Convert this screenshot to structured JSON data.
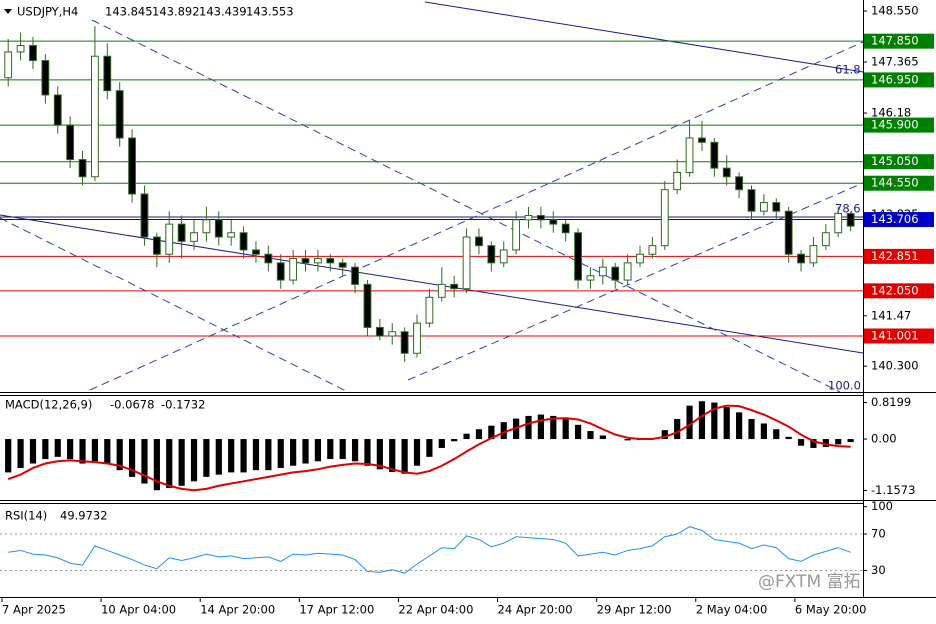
{
  "chart_data": [
    {
      "type": "candlestick",
      "symbol": "USDJPY,H4",
      "xlim": [
        0,
        69.5
      ],
      "xticks": [
        {
          "value": 0,
          "label": "7 Apr 2025"
        },
        {
          "value": 8,
          "label": "10 Apr 04:00"
        },
        {
          "value": 16,
          "label": "14 Apr 20:00"
        },
        {
          "value": 24,
          "label": "17 Apr 12:00"
        },
        {
          "value": 32,
          "label": "22 Apr 04:00"
        },
        {
          "value": 40,
          "label": "24 Apr 20:00"
        },
        {
          "value": 48,
          "label": "29 Apr 12:00"
        },
        {
          "value": 56,
          "label": "2 May 04:00"
        },
        {
          "value": 64,
          "label": "6 May 20:00"
        }
      ],
      "ylim": [
        139.7,
        148.76
      ],
      "yticks": [
        {
          "value": 148.55,
          "label": "148.550"
        },
        147.365,
        146.18,
        143.825,
        141.47,
        {
          "value": 140.3,
          "label": "140.300"
        }
      ],
      "up_color": "#ffffff",
      "down_color": "#000000",
      "outline_color": "#2f6b1f",
      "levels": [
        {
          "value": 147.85,
          "label": "147.850",
          "color": "#008000"
        },
        {
          "value": 146.95,
          "label": "146.950",
          "color": "#008000"
        },
        {
          "value": 145.9,
          "label": "145.900",
          "color": "#008000"
        },
        {
          "value": 145.05,
          "label": "145.050",
          "color": "#008000"
        },
        {
          "value": 144.55,
          "label": "144.550",
          "color": "#008000"
        },
        {
          "value": 143.706,
          "label": "143.706",
          "color": "#0000c8"
        },
        {
          "value": 142.851,
          "label": "142.851",
          "color": "#e00000"
        },
        {
          "value": 142.05,
          "label": "142.050",
          "color": "#e00000"
        },
        {
          "value": 141.001,
          "label": "141.001",
          "color": "#e00000"
        }
      ],
      "annotations": [
        "61.8",
        "78.6",
        "100.0"
      ],
      "candles": [
        [
          147.0,
          147.9,
          146.8,
          147.6
        ],
        [
          147.6,
          148.05,
          147.4,
          147.75
        ],
        [
          147.75,
          147.95,
          147.2,
          147.4
        ],
        [
          147.4,
          147.55,
          146.4,
          146.6
        ],
        [
          146.6,
          146.8,
          145.7,
          145.9
        ],
        [
          145.9,
          146.1,
          144.9,
          145.1
        ],
        [
          145.1,
          145.3,
          144.5,
          144.7
        ],
        [
          144.7,
          148.2,
          144.6,
          147.5
        ],
        [
          147.5,
          147.8,
          146.5,
          146.7
        ],
        [
          146.7,
          146.9,
          145.4,
          145.6
        ],
        [
          145.6,
          145.8,
          144.1,
          144.3
        ],
        [
          144.3,
          144.5,
          143.1,
          143.3
        ],
        [
          143.3,
          143.4,
          142.6,
          142.9
        ],
        [
          142.9,
          143.9,
          142.7,
          143.6
        ],
        [
          143.6,
          143.8,
          142.8,
          143.2
        ],
        [
          143.2,
          143.7,
          143.0,
          143.4
        ],
        [
          143.4,
          144.0,
          143.2,
          143.7
        ],
        [
          143.7,
          143.9,
          143.1,
          143.3
        ],
        [
          143.3,
          143.7,
          143.1,
          143.4
        ],
        [
          143.4,
          143.55,
          142.8,
          143.0
        ],
        [
          143.0,
          143.2,
          142.7,
          142.9
        ],
        [
          142.9,
          143.1,
          142.5,
          142.7
        ],
        [
          142.7,
          142.9,
          142.1,
          142.3
        ],
        [
          142.3,
          143.0,
          142.2,
          142.8
        ],
        [
          142.8,
          143.0,
          142.5,
          142.7
        ],
        [
          142.7,
          143.0,
          142.5,
          142.8
        ],
        [
          142.8,
          142.9,
          142.5,
          142.7
        ],
        [
          142.7,
          142.8,
          142.4,
          142.6
        ],
        [
          142.6,
          142.7,
          142.0,
          142.2
        ],
        [
          142.2,
          142.3,
          141.0,
          141.2
        ],
        [
          141.2,
          141.4,
          140.9,
          141.0
        ],
        [
          141.0,
          141.3,
          140.8,
          141.1
        ],
        [
          141.1,
          141.2,
          140.4,
          140.6
        ],
        [
          140.6,
          141.5,
          140.5,
          141.3
        ],
        [
          141.3,
          142.1,
          141.2,
          141.9
        ],
        [
          141.9,
          142.6,
          141.8,
          142.2
        ],
        [
          142.2,
          142.4,
          141.9,
          142.1
        ],
        [
          142.1,
          143.5,
          142.0,
          143.3
        ],
        [
          143.3,
          143.5,
          142.9,
          143.1
        ],
        [
          143.1,
          143.2,
          142.5,
          142.7
        ],
        [
          142.7,
          143.2,
          142.6,
          143.0
        ],
        [
          143.0,
          143.9,
          142.9,
          143.7
        ],
        [
          143.7,
          144.0,
          143.5,
          143.8
        ],
        [
          143.8,
          144.0,
          143.5,
          143.7
        ],
        [
          143.7,
          143.9,
          143.4,
          143.6
        ],
        [
          143.6,
          143.7,
          143.2,
          143.4
        ],
        [
          143.4,
          143.5,
          142.1,
          142.3
        ],
        [
          142.3,
          142.6,
          142.1,
          142.4
        ],
        [
          142.4,
          142.8,
          142.2,
          142.6
        ],
        [
          142.6,
          142.7,
          142.1,
          142.3
        ],
        [
          142.3,
          142.9,
          142.2,
          142.7
        ],
        [
          142.7,
          143.1,
          142.6,
          142.9
        ],
        [
          142.9,
          143.3,
          142.8,
          143.1
        ],
        [
          143.1,
          144.6,
          143.0,
          144.4
        ],
        [
          144.4,
          145.1,
          144.3,
          144.8
        ],
        [
          144.8,
          146.0,
          144.7,
          145.6
        ],
        [
          145.6,
          146.0,
          145.3,
          145.5
        ],
        [
          145.5,
          145.6,
          144.7,
          144.9
        ],
        [
          144.9,
          145.2,
          144.5,
          144.7
        ],
        [
          144.7,
          144.8,
          144.2,
          144.4
        ],
        [
          144.4,
          144.5,
          143.7,
          143.9
        ],
        [
          143.9,
          144.3,
          143.8,
          144.1
        ],
        [
          144.1,
          144.2,
          143.7,
          143.9
        ],
        [
          143.9,
          144.0,
          142.7,
          142.9
        ],
        [
          142.9,
          143.0,
          142.5,
          142.7
        ],
        [
          142.7,
          143.3,
          142.6,
          143.1
        ],
        [
          143.1,
          143.6,
          143.0,
          143.4
        ],
        [
          143.4,
          144.0,
          143.3,
          143.85
        ],
        [
          143.845,
          143.892,
          143.439,
          143.553
        ]
      ]
    },
    {
      "type": "macd",
      "title": "MACD(12,26,9)",
      "ylim": [
        -1.37,
        0.99
      ],
      "yticks": [
        0.8199,
        {
          "value": 0,
          "label": "0.00"
        },
        -1.1573
      ],
      "histogram_color": "#000000",
      "signal_color": "#e00000",
      "histogram": [
        -0.75,
        -0.65,
        -0.55,
        -0.45,
        -0.4,
        -0.45,
        -0.55,
        -0.5,
        -0.55,
        -0.7,
        -0.85,
        -1.0,
        -1.15,
        -1.1,
        -1.05,
        -0.95,
        -0.85,
        -0.8,
        -0.75,
        -0.75,
        -0.7,
        -0.7,
        -0.65,
        -0.6,
        -0.55,
        -0.5,
        -0.45,
        -0.45,
        -0.5,
        -0.6,
        -0.68,
        -0.74,
        -0.78,
        -0.6,
        -0.4,
        -0.2,
        -0.05,
        0.12,
        0.22,
        0.3,
        0.38,
        0.46,
        0.52,
        0.55,
        0.52,
        0.45,
        0.32,
        0.18,
        0.08,
        0.0,
        -0.03,
        -0.02,
        0.02,
        0.2,
        0.45,
        0.75,
        0.85,
        0.82,
        0.72,
        0.6,
        0.45,
        0.35,
        0.22,
        0.05,
        -0.15,
        -0.2,
        -0.18,
        -0.12,
        -0.0678
      ],
      "signal": [
        -0.9,
        -0.8,
        -0.65,
        -0.55,
        -0.5,
        -0.48,
        -0.5,
        -0.52,
        -0.55,
        -0.6,
        -0.7,
        -0.82,
        -0.95,
        -1.05,
        -1.12,
        -1.15,
        -1.12,
        -1.05,
        -1.0,
        -0.95,
        -0.9,
        -0.85,
        -0.8,
        -0.75,
        -0.72,
        -0.68,
        -0.62,
        -0.58,
        -0.55,
        -0.56,
        -0.6,
        -0.68,
        -0.75,
        -0.78,
        -0.72,
        -0.6,
        -0.45,
        -0.28,
        -0.12,
        0.02,
        0.15,
        0.25,
        0.35,
        0.42,
        0.46,
        0.47,
        0.44,
        0.35,
        0.22,
        0.1,
        0.03,
        0.0,
        0.0,
        0.05,
        0.15,
        0.32,
        0.52,
        0.68,
        0.75,
        0.74,
        0.65,
        0.55,
        0.42,
        0.28,
        0.1,
        -0.05,
        -0.12,
        -0.16,
        -0.1732
      ]
    },
    {
      "type": "rsi",
      "title": "RSI(14)",
      "ylim": [
        1,
        104
      ],
      "yticks": [
        100,
        70,
        30
      ],
      "levels": [
        70,
        30
      ],
      "color": "#1e90ff",
      "values": [
        50,
        52,
        48,
        47,
        44,
        38,
        36,
        57,
        52,
        47,
        42,
        36,
        32,
        44,
        41,
        44,
        48,
        45,
        46,
        43,
        44,
        45,
        40,
        48,
        47,
        49,
        48,
        47,
        42,
        29,
        28,
        31,
        27,
        37,
        46,
        55,
        54,
        68,
        64,
        56,
        60,
        67,
        66,
        65,
        64,
        60,
        46,
        48,
        50,
        47,
        52,
        54,
        57,
        67,
        70,
        78,
        74,
        64,
        62,
        60,
        54,
        58,
        55,
        43,
        40,
        47,
        51,
        55,
        49.9732
      ]
    }
  ],
  "watermark": "@FXTM 富拓"
}
